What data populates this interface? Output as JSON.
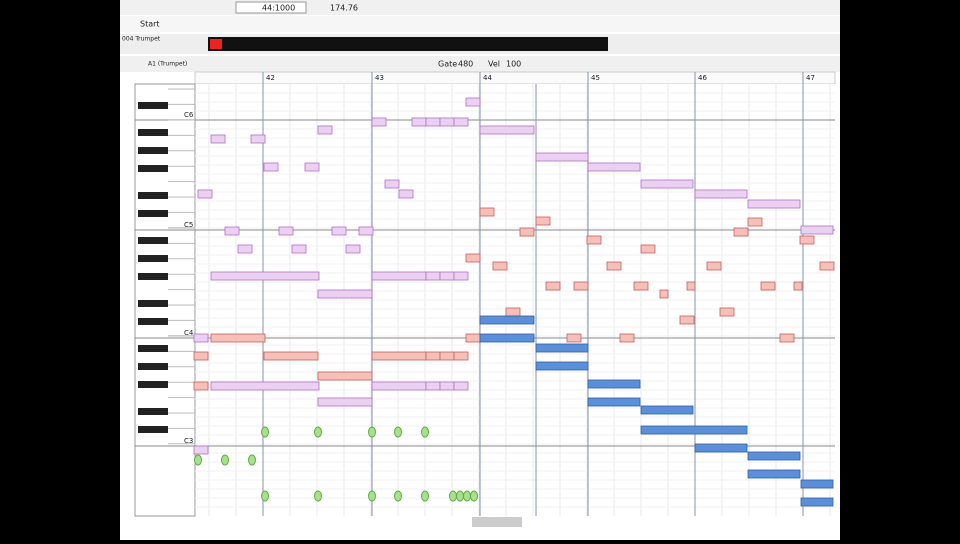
{
  "toolbar": {
    "position": "44:1000",
    "tempo": "174.76"
  },
  "tab": {
    "title": "Start"
  },
  "track": {
    "name": "004 Trumpet",
    "instrument": "A1 (Trumpet)",
    "gate_label": "Gate",
    "gate": "480",
    "vel_label": "Vel",
    "vel": "100"
  },
  "ruler": {
    "measures": [
      "42",
      "43",
      "44",
      "45",
      "46",
      "47"
    ]
  },
  "keyboard": {
    "octaves": [
      "C6",
      "C5",
      "C4",
      "C3"
    ]
  }
}
